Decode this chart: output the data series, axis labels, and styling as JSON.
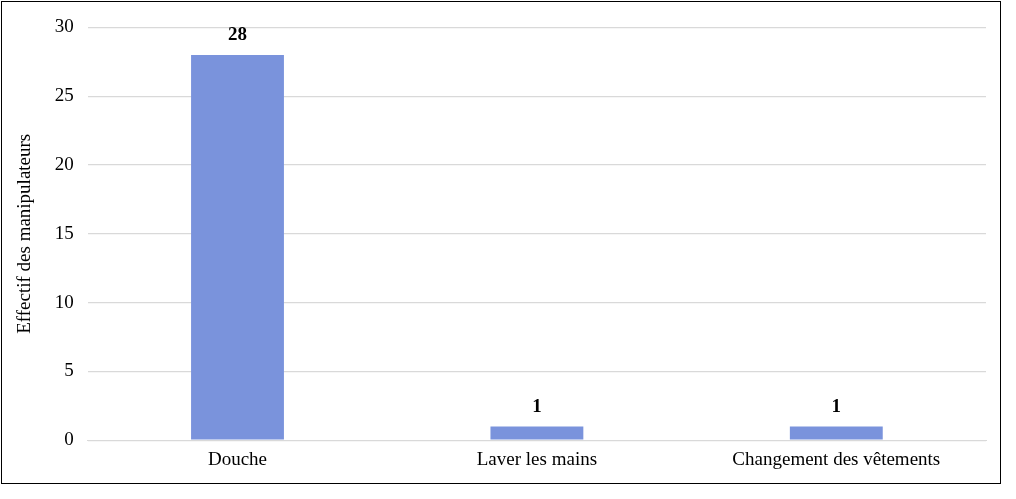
{
  "chart_data": {
    "type": "bar",
    "ylabel": "Effectif des manipulateurs",
    "categories": [
      "Douche",
      "Laver les mains",
      "Changement des vêtements"
    ],
    "values": [
      28,
      1,
      1
    ],
    "color": "#7a93dc",
    "ylim": [
      0,
      30
    ],
    "yticks": [
      0,
      5,
      10,
      15,
      20,
      25,
      30
    ],
    "grid": "y",
    "data_labels": true,
    "legend": false
  }
}
